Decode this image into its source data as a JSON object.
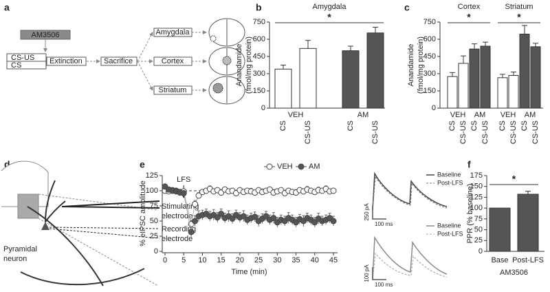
{
  "panel_labels": [
    "a",
    "b",
    "c",
    "d",
    "e",
    "f"
  ],
  "diagram_a": {
    "drug": "AM3506",
    "cs_us": "CS-US",
    "cs": "CS",
    "extinction": "Extinction",
    "sacrifice": "Sacrifice",
    "regions": [
      "Amygdala",
      "Cortex",
      "Striatum"
    ]
  },
  "diagram_d": {
    "stimulating": [
      "Stimulating",
      "electrode"
    ],
    "recording": [
      "Recording",
      "electrode"
    ],
    "neuron": [
      "Pyramidal",
      "neuron"
    ]
  },
  "traces": [
    {
      "legend": [
        "Baseline",
        "Post-LFS"
      ],
      "scale_y": "250 pA",
      "scale_x": "100 ms"
    },
    {
      "legend": [
        "Baseline",
        "Post-LFS"
      ],
      "scale_y": "100 pA",
      "scale_x": "100 ms"
    }
  ],
  "chart_data": [
    {
      "type": "bar",
      "titles": [
        "Amygdala"
      ],
      "ylabel": [
        "Anandamide",
        "(fmol/mg protein)"
      ],
      "categories": [
        "CS",
        "CS-US",
        "CS",
        "CS-US"
      ],
      "groups": [
        "VEH",
        "AM"
      ],
      "values": [
        340,
        520,
        500,
        655
      ],
      "errors": [
        35,
        70,
        40,
        50
      ],
      "colors": [
        "#ffffff",
        "#ffffff",
        "#555555",
        "#555555"
      ],
      "ylim": [
        0,
        750
      ],
      "yticks": [
        0,
        150,
        300,
        450,
        600,
        750
      ],
      "significance": [
        "*"
      ]
    },
    {
      "type": "bar",
      "titles": [
        "Cortex",
        "Striatum"
      ],
      "ylabel": [
        "Anandamide",
        "(fmol/mg protein)"
      ],
      "categories": [
        "CS",
        "CS-US",
        "CS",
        "CS-US",
        "CS",
        "CS-US",
        "CS",
        "CS-US"
      ],
      "groups": [
        "VEH",
        "AM",
        "VEH",
        "AM"
      ],
      "values": [
        275,
        390,
        515,
        540,
        265,
        285,
        645,
        535
      ],
      "errors": [
        35,
        65,
        45,
        35,
        30,
        30,
        75,
        30
      ],
      "colors": [
        "#ffffff",
        "#ffffff",
        "#555555",
        "#555555",
        "#ffffff",
        "#ffffff",
        "#555555",
        "#555555"
      ],
      "ylim": [
        0,
        750
      ],
      "yticks": [
        0,
        150,
        300,
        450,
        600,
        750
      ],
      "significance": [
        "*",
        "*"
      ]
    },
    {
      "type": "line",
      "xlabel": "Time (min)",
      "ylabel": "% eIPSC amplitude",
      "x": [
        0,
        1,
        2,
        3,
        4,
        5,
        7,
        8,
        9,
        10,
        11,
        12,
        13,
        14,
        15,
        16,
        17,
        18,
        19,
        20,
        21,
        22,
        23,
        24,
        25,
        26,
        27,
        28,
        29,
        30,
        31,
        32,
        33,
        34,
        35,
        36,
        37,
        38,
        39,
        40,
        41,
        42,
        43,
        44,
        45
      ],
      "series": [
        {
          "name": "VEH",
          "color": "#444444",
          "fill": "#ffffff",
          "values": [
            100,
            99,
            101,
            100,
            98,
            99,
            45,
            78,
            92,
            98,
            100,
            103,
            99,
            101,
            97,
            102,
            99,
            100,
            96,
            101,
            98,
            100,
            99,
            97,
            101,
            98,
            100,
            102,
            97,
            99,
            101,
            96,
            100,
            98,
            97,
            101,
            99,
            102,
            100,
            98,
            101,
            100,
            103,
            99,
            100
          ],
          "errors": [
            4,
            4,
            4,
            4,
            4,
            4,
            6,
            6,
            5,
            4,
            4,
            5,
            4,
            4,
            5,
            4,
            4,
            4,
            5,
            4,
            4,
            4,
            5,
            4,
            4,
            5,
            4,
            4,
            5,
            4,
            4,
            5,
            4,
            4,
            5,
            4,
            4,
            5,
            4,
            4,
            5,
            4,
            5,
            4,
            4
          ]
        },
        {
          "name": "AM",
          "color": "#444444",
          "fill": "#555555",
          "values": [
            107,
            102,
            100,
            99,
            97,
            96,
            32,
            50,
            58,
            60,
            62,
            58,
            60,
            56,
            62,
            55,
            58,
            54,
            60,
            56,
            58,
            52,
            55,
            57,
            50,
            54,
            58,
            52,
            55,
            48,
            52,
            50,
            55,
            52,
            48,
            53,
            50,
            55,
            52,
            48,
            54,
            50,
            52,
            55,
            50
          ],
          "errors": [
            4,
            4,
            4,
            4,
            4,
            4,
            8,
            9,
            9,
            8,
            8,
            8,
            9,
            8,
            8,
            8,
            9,
            8,
            8,
            8,
            9,
            8,
            8,
            8,
            9,
            8,
            8,
            8,
            9,
            8,
            8,
            8,
            9,
            8,
            8,
            8,
            9,
            8,
            8,
            8,
            9,
            8,
            8,
            8,
            8
          ]
        }
      ],
      "xlim": [
        0,
        45
      ],
      "xticks": [
        0,
        5,
        10,
        15,
        20,
        25,
        30,
        35,
        40,
        45
      ],
      "ylim": [
        0,
        125
      ],
      "yticks": [
        0,
        25,
        50,
        75,
        100,
        125
      ],
      "reference_line": 100,
      "annotation": {
        "text": "LFS",
        "x": 5
      }
    },
    {
      "type": "bar",
      "ylabel": [
        "PPR (% baseline)"
      ],
      "xlabel": "AM3506",
      "categories": [
        "Base",
        "Post-LFS"
      ],
      "values": [
        100,
        132
      ],
      "errors": [
        null,
        7
      ],
      "colors": [
        "#555555",
        "#555555"
      ],
      "ylim": [
        0,
        175
      ],
      "yticks": [
        0,
        25,
        50,
        75,
        100,
        125,
        150,
        175
      ],
      "significance": [
        "*"
      ]
    }
  ]
}
